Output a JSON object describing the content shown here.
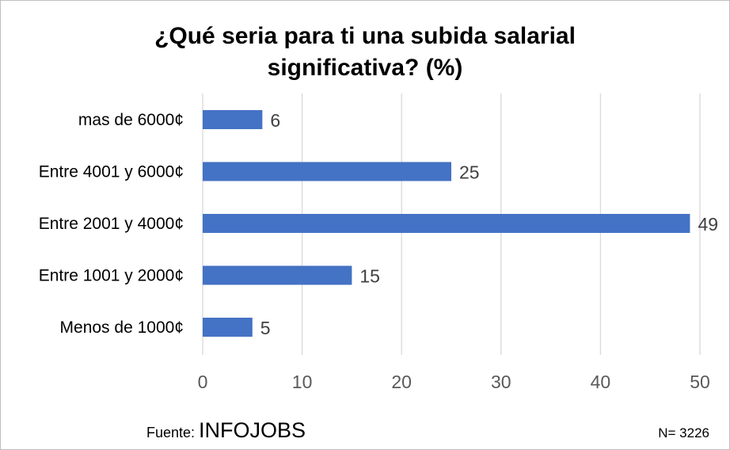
{
  "chart_data": {
    "type": "bar",
    "orientation": "horizontal",
    "title": [
      "¿Qué seria para ti una subida salarial",
      "significativa?  (%)"
    ],
    "categories": [
      "mas de 6000¢",
      "Entre 4001 y 6000¢",
      "Entre 2001 y 4000¢",
      "Entre 1001 y 2000¢",
      "Menos de 1000¢"
    ],
    "values": [
      6,
      25,
      49,
      15,
      5
    ],
    "xlim": [
      0,
      50
    ],
    "xticks": [
      0,
      10,
      20,
      30,
      40,
      50
    ],
    "grid": "vertical",
    "legend": "none",
    "bar_color": "#4472c4"
  },
  "footer": {
    "source_prefix": "Fuente: ",
    "source_name": "INFOJOBS",
    "sample": "N= 3226"
  }
}
